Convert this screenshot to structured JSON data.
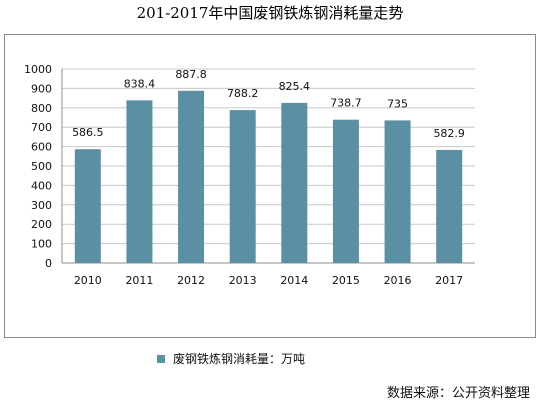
{
  "chart_data": {
    "type": "bar",
    "title": "201-2017年中国废钢铁炼钢消耗量走势",
    "categories": [
      "2010",
      "2011",
      "2012",
      "2013",
      "2014",
      "2015",
      "2016",
      "2017"
    ],
    "series": [
      {
        "name": "废钢铁炼钢消耗量：万吨",
        "values": [
          586.5,
          838.4,
          887.8,
          788.2,
          825.4,
          738.7,
          735,
          582.9
        ],
        "value_labels": [
          "586.5",
          "838.4",
          "887.8",
          "788.2",
          "825.4",
          "738.7",
          "735",
          "582.9"
        ]
      }
    ],
    "ylim": [
      0,
      1000
    ],
    "yticks": [
      0,
      100,
      200,
      300,
      400,
      500,
      600,
      700,
      800,
      900,
      1000
    ],
    "grid": true,
    "legend_position": "bottom",
    "colors": {
      "bar": "#5b8fa3",
      "grid": "#c8c8c8",
      "axis": "#8c8c8c"
    }
  },
  "source": "数据来源：公开资料整理"
}
